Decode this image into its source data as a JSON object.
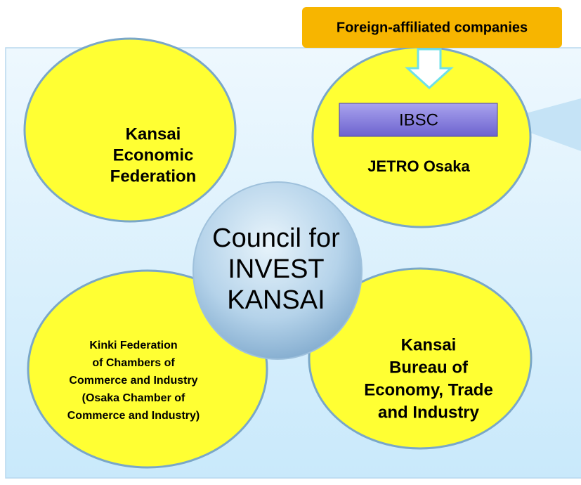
{
  "top_box": {
    "label": "Foreign-affiliated companies"
  },
  "ibsc": {
    "label": "IBSC"
  },
  "center": {
    "lines": [
      "Council for",
      "INVEST",
      "KANSAI"
    ]
  },
  "nodes": [
    {
      "lines": [
        "Kansai",
        "Economic",
        "Federation"
      ]
    },
    {
      "lines": [
        "JETRO Osaka"
      ]
    },
    {
      "lines": [
        "Kinki Federation",
        "of Chambers of",
        "Commerce and Industry",
        "(Osaka Chamber of",
        "Commerce and Industry)"
      ]
    },
    {
      "lines": [
        "Kansai",
        "Bureau of",
        "Economy, Trade",
        "and Industry"
      ]
    }
  ]
}
